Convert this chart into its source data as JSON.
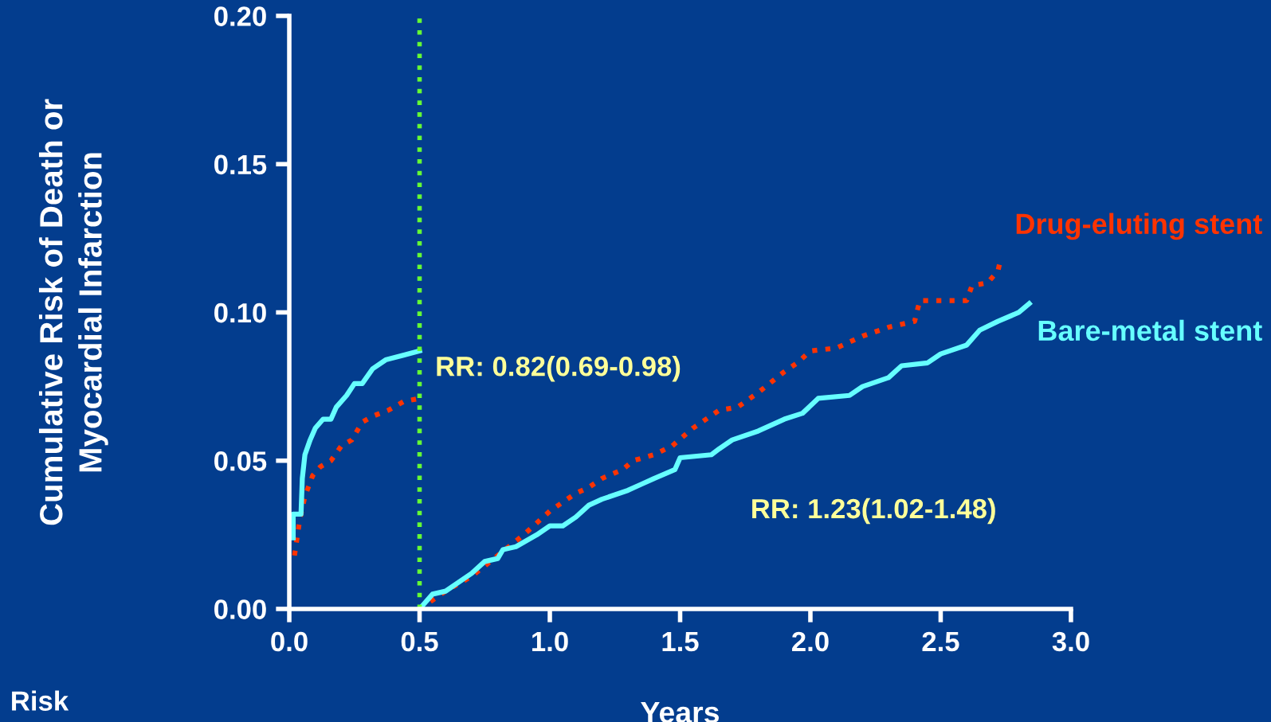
{
  "chart_data": {
    "type": "line",
    "xlabel": "Years",
    "ylabel": "Cumulative Risk of Death or\nMyocardial Infarction",
    "xlim": [
      0,
      3
    ],
    "ylim": [
      0,
      0.2
    ],
    "xticks": [
      {
        "value": 0,
        "label": "0.0"
      },
      {
        "value": 0.5,
        "label": "0.5"
      },
      {
        "value": 1,
        "label": "1.0"
      },
      {
        "value": 1.5,
        "label": "1.5"
      },
      {
        "value": 2,
        "label": "2.0"
      },
      {
        "value": 2.5,
        "label": "2.5"
      },
      {
        "value": 3,
        "label": "3.0"
      }
    ],
    "yticks": [
      {
        "value": 0,
        "label": "0.00"
      },
      {
        "value": 0.05,
        "label": "0.05"
      },
      {
        "value": 0.1,
        "label": "0.10"
      },
      {
        "value": 0.15,
        "label": "0.15"
      },
      {
        "value": 0.2,
        "label": "0.20"
      }
    ],
    "grid": false,
    "legend": false,
    "series": [
      {
        "color": "#ff3300",
        "line_style": "dotted",
        "x": [
          0.02,
          0.04,
          0.06,
          0.09,
          0.12,
          0.16,
          0.2,
          0.24,
          0.28,
          0.32,
          0.38,
          0.44,
          0.5
        ],
        "values": [
          0.018,
          0.03,
          0.038,
          0.045,
          0.048,
          0.05,
          0.055,
          0.057,
          0.063,
          0.065,
          0.067,
          0.07,
          0.071
        ]
      },
      {
        "name": "Drug-eluting stent",
        "color": "#ff3300",
        "line_style": "dotted",
        "x": [
          0.5,
          0.6,
          0.7,
          0.8,
          0.9,
          1.0,
          1.1,
          1.15,
          1.2,
          1.28,
          1.32,
          1.4,
          1.47,
          1.55,
          1.65,
          1.72,
          1.8,
          1.9,
          1.95,
          2.0,
          2.1,
          2.2,
          2.3,
          2.4,
          2.42,
          2.6,
          2.62,
          2.68,
          2.72,
          2.73
        ],
        "values": [
          0,
          0.006,
          0.011,
          0.018,
          0.025,
          0.033,
          0.039,
          0.041,
          0.044,
          0.047,
          0.05,
          0.052,
          0.055,
          0.061,
          0.067,
          0.068,
          0.073,
          0.08,
          0.083,
          0.087,
          0.088,
          0.092,
          0.095,
          0.097,
          0.104,
          0.104,
          0.109,
          0.11,
          0.114,
          0.118
        ]
      },
      {
        "color": "#66ffff",
        "line_style": "solid",
        "x": [
          0.015,
          0.015,
          0.045,
          0.05,
          0.06,
          0.08,
          0.1,
          0.13,
          0.16,
          0.18,
          0.22,
          0.25,
          0.28,
          0.32,
          0.37,
          0.5
        ],
        "values": [
          0.024,
          0.032,
          0.032,
          0.044,
          0.052,
          0.057,
          0.061,
          0.064,
          0.064,
          0.068,
          0.072,
          0.076,
          0.076,
          0.081,
          0.084,
          0.087
        ]
      },
      {
        "name": "Bare-metal stent",
        "color": "#66ffff",
        "line_style": "solid",
        "x": [
          0.5,
          0.55,
          0.6,
          0.7,
          0.75,
          0.8,
          0.82,
          0.87,
          0.95,
          1.0,
          1.05,
          1.1,
          1.15,
          1.2,
          1.3,
          1.35,
          1.4,
          1.48,
          1.5,
          1.62,
          1.65,
          1.7,
          1.8,
          1.9,
          1.97,
          2.03,
          2.15,
          2.2,
          2.3,
          2.35,
          2.45,
          2.5,
          2.6,
          2.65,
          2.72,
          2.8,
          2.84
        ],
        "values": [
          0,
          0.005,
          0.006,
          0.012,
          0.016,
          0.017,
          0.02,
          0.021,
          0.025,
          0.028,
          0.028,
          0.031,
          0.035,
          0.037,
          0.04,
          0.042,
          0.044,
          0.047,
          0.051,
          0.052,
          0.054,
          0.057,
          0.06,
          0.064,
          0.066,
          0.071,
          0.072,
          0.075,
          0.078,
          0.082,
          0.083,
          0.086,
          0.089,
          0.094,
          0.097,
          0.1,
          0.103
        ]
      }
    ],
    "ref_lines": [
      {
        "axis": "x",
        "value": 0.5,
        "color": "#66ff33",
        "line_style": "dotted"
      }
    ],
    "annotations": [
      "RR: 0.82(0.69-0.98)",
      "RR: 1.23(1.02-1.48)",
      "Risk"
    ]
  }
}
